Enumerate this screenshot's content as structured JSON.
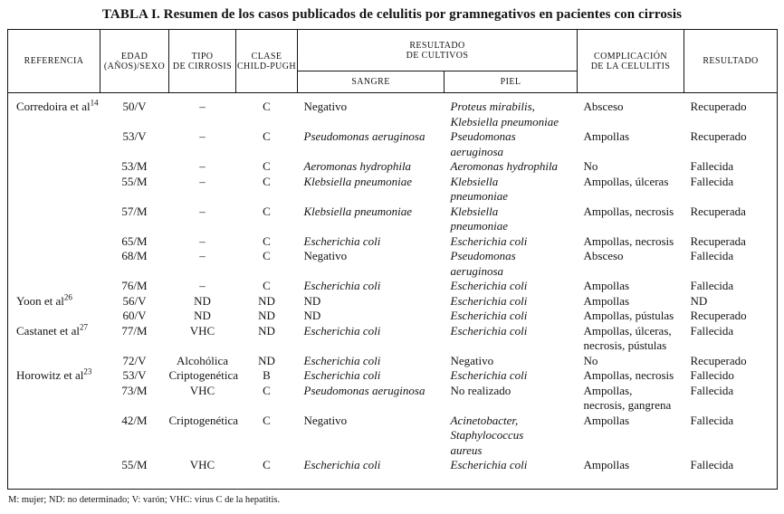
{
  "title": "TABLA I. Resumen de los casos publicados de celulitis por gramnegativos en pacientes con cirrosis",
  "footnote": "M: mujer; ND: no determinado; V: varón; VHC: virus C de la hepatitis.",
  "table": {
    "headers": {
      "referencia": "REFERENCIA",
      "edad": "EDAD\n(AÑOS)/SEXO",
      "tipo": "TIPO\nDE CIRROSIS",
      "clase": "CLASE\nCHILD-PUGH",
      "cultivos": "RESULTADO\nDE CULTIVOS",
      "sangre": "SANGRE",
      "piel": "PIEL",
      "complicacion": "COMPLICACIÓN\nDE LA CELULITIS",
      "resultado": "RESULTADO"
    },
    "rows": [
      {
        "referencia": {
          "text": "Corredoira et al",
          "sup": "14"
        },
        "edad": "50/V",
        "tipo": "–",
        "clase": "C",
        "sangre": {
          "text": "Negativo",
          "italic": false
        },
        "piel": {
          "text": "Proteus mirabilis,\nKlebsiella pneumoniae",
          "italic": true
        },
        "complicacion": "Absceso",
        "resultado": "Recuperado"
      },
      {
        "referencia": null,
        "edad": "53/V",
        "tipo": "–",
        "clase": "C",
        "sangre": {
          "text": "Pseudomonas aeruginosa",
          "italic": true
        },
        "piel": {
          "text": "Pseudomonas\naeruginosa",
          "italic": true
        },
        "complicacion": "Ampollas",
        "resultado": "Recuperado"
      },
      {
        "referencia": null,
        "edad": "53/M",
        "tipo": "–",
        "clase": "C",
        "sangre": {
          "text": "Aeromonas hydrophila",
          "italic": true
        },
        "piel": {
          "text": "Aeromonas hydrophila",
          "italic": true
        },
        "complicacion": "No",
        "resultado": "Fallecida"
      },
      {
        "referencia": null,
        "edad": "55/M",
        "tipo": "–",
        "clase": "C",
        "sangre": {
          "text": "Klebsiella pneumoniae",
          "italic": true
        },
        "piel": {
          "text": "Klebsiella\npneumoniae",
          "italic": true
        },
        "complicacion": "Ampollas, úlceras",
        "resultado": "Fallecida"
      },
      {
        "referencia": null,
        "edad": "57/M",
        "tipo": "–",
        "clase": "C",
        "sangre": {
          "text": "Klebsiella pneumoniae",
          "italic": true
        },
        "piel": {
          "text": "Klebsiella\npneumoniae",
          "italic": true
        },
        "complicacion": "Ampollas, necrosis",
        "resultado": "Recuperada"
      },
      {
        "referencia": null,
        "edad": "65/M",
        "tipo": "–",
        "clase": "C",
        "sangre": {
          "text": "Escherichia coli",
          "italic": true
        },
        "piel": {
          "text": "Escherichia coli",
          "italic": true
        },
        "complicacion": "Ampollas, necrosis",
        "resultado": "Recuperada"
      },
      {
        "referencia": null,
        "edad": "68/M",
        "tipo": "–",
        "clase": "C",
        "sangre": {
          "text": "Negativo",
          "italic": false
        },
        "piel": {
          "text": "Pseudomonas\naeruginosa",
          "italic": true
        },
        "complicacion": "Absceso",
        "resultado": "Fallecida"
      },
      {
        "referencia": null,
        "edad": "76/M",
        "tipo": "–",
        "clase": "C",
        "sangre": {
          "text": "Escherichia coli",
          "italic": true
        },
        "piel": {
          "text": "Escherichia coli",
          "italic": true
        },
        "complicacion": "Ampollas",
        "resultado": "Fallecida"
      },
      {
        "referencia": {
          "text": "Yoon et al",
          "sup": "26"
        },
        "edad": "56/V",
        "tipo": "ND",
        "clase": "ND",
        "sangre": {
          "text": "ND",
          "italic": false
        },
        "piel": {
          "text": "Escherichia coli",
          "italic": true
        },
        "complicacion": "Ampollas",
        "resultado": "ND"
      },
      {
        "referencia": null,
        "edad": "60/V",
        "tipo": "ND",
        "clase": "ND",
        "sangre": {
          "text": "ND",
          "italic": false
        },
        "piel": {
          "text": "Escherichia coli",
          "italic": true
        },
        "complicacion": "Ampollas, pústulas",
        "resultado": "Recuperado"
      },
      {
        "referencia": {
          "text": "Castanet et al",
          "sup": "27"
        },
        "edad": "77/M",
        "tipo": "VHC",
        "clase": "ND",
        "sangre": {
          "text": "Escherichia coli",
          "italic": true
        },
        "piel": {
          "text": "Escherichia coli",
          "italic": true
        },
        "complicacion": "Ampollas, úlceras,\nnecrosis, pústulas",
        "resultado": "Fallecida"
      },
      {
        "referencia": null,
        "edad": "72/V",
        "tipo": "Alcohólica",
        "clase": "ND",
        "sangre": {
          "text": "Escherichia coli",
          "italic": true
        },
        "piel": {
          "text": "Negativo",
          "italic": false
        },
        "complicacion": "No",
        "resultado": "Recuperado"
      },
      {
        "referencia": {
          "text": "Horowitz et al",
          "sup": "23"
        },
        "edad": "53/V",
        "tipo": "Criptogenética",
        "clase": "B",
        "sangre": {
          "text": "Escherichia coli",
          "italic": true
        },
        "piel": {
          "text": "Escherichia coli",
          "italic": true
        },
        "complicacion": "Ampollas, necrosis",
        "resultado": "Fallecido"
      },
      {
        "referencia": null,
        "edad": "73/M",
        "tipo": "VHC",
        "clase": "C",
        "sangre": {
          "text": "Pseudomonas aeruginosa",
          "italic": true
        },
        "piel": {
          "text": "No realizado",
          "italic": false
        },
        "complicacion": "Ampollas,\nnecrosis, gangrena",
        "resultado": "Fallecida"
      },
      {
        "referencia": null,
        "edad": "42/M",
        "tipo": "Criptogenética",
        "clase": "C",
        "sangre": {
          "text": "Negativo",
          "italic": false
        },
        "piel": {
          "text": "Acinetobacter,\nStaphylococcus\naureus",
          "italic": true
        },
        "complicacion": "Ampollas",
        "resultado": "Fallecida"
      },
      {
        "referencia": null,
        "edad": "55/M",
        "tipo": "VHC",
        "clase": "C",
        "sangre": {
          "text": "Escherichia coli",
          "italic": true
        },
        "piel": {
          "text": "Escherichia coli",
          "italic": true
        },
        "complicacion": "Ampollas",
        "resultado": "Fallecida"
      }
    ]
  }
}
